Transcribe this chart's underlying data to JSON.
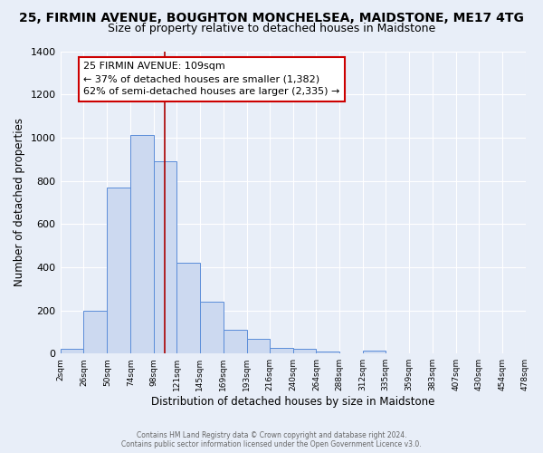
{
  "title_line1": "25, FIRMIN AVENUE, BOUGHTON MONCHELSEA, MAIDSTONE, ME17 4TG",
  "title_line2": "Size of property relative to detached houses in Maidstone",
  "xlabel": "Distribution of detached houses by size in Maidstone",
  "ylabel": "Number of detached properties",
  "footer_line1": "Contains HM Land Registry data © Crown copyright and database right 2024.",
  "footer_line2": "Contains public sector information licensed under the Open Government Licence v3.0.",
  "bin_edges": [
    2,
    26,
    50,
    74,
    98,
    121,
    145,
    169,
    193,
    216,
    240,
    264,
    288,
    312,
    335,
    359,
    383,
    407,
    430,
    454,
    478
  ],
  "bin_labels": [
    "2sqm",
    "26sqm",
    "50sqm",
    "74sqm",
    "98sqm",
    "121sqm",
    "145sqm",
    "169sqm",
    "193sqm",
    "216sqm",
    "240sqm",
    "264sqm",
    "288sqm",
    "312sqm",
    "335sqm",
    "359sqm",
    "383sqm",
    "407sqm",
    "430sqm",
    "454sqm",
    "478sqm"
  ],
  "bar_heights": [
    20,
    200,
    770,
    1010,
    890,
    420,
    240,
    110,
    70,
    25,
    20,
    10,
    0,
    15,
    0,
    0,
    0,
    0,
    0,
    0
  ],
  "bar_color": "#ccd9f0",
  "bar_edge_color": "#5b8dd9",
  "property_line_x": 109,
  "property_line_color": "#aa0000",
  "annotation_text": "25 FIRMIN AVENUE: 109sqm\n← 37% of detached houses are smaller (1,382)\n62% of semi-detached houses are larger (2,335) →",
  "annotation_box_color": "#ffffff",
  "annotation_box_edge_color": "#cc0000",
  "ylim": [
    0,
    1400
  ],
  "yticks": [
    0,
    200,
    400,
    600,
    800,
    1000,
    1200,
    1400
  ],
  "bg_color": "#e8eef8",
  "plot_bg_color": "#e8eef8",
  "grid_color": "#ffffff",
  "title1_fontsize": 10,
  "title2_fontsize": 9,
  "annot_fontsize": 8
}
